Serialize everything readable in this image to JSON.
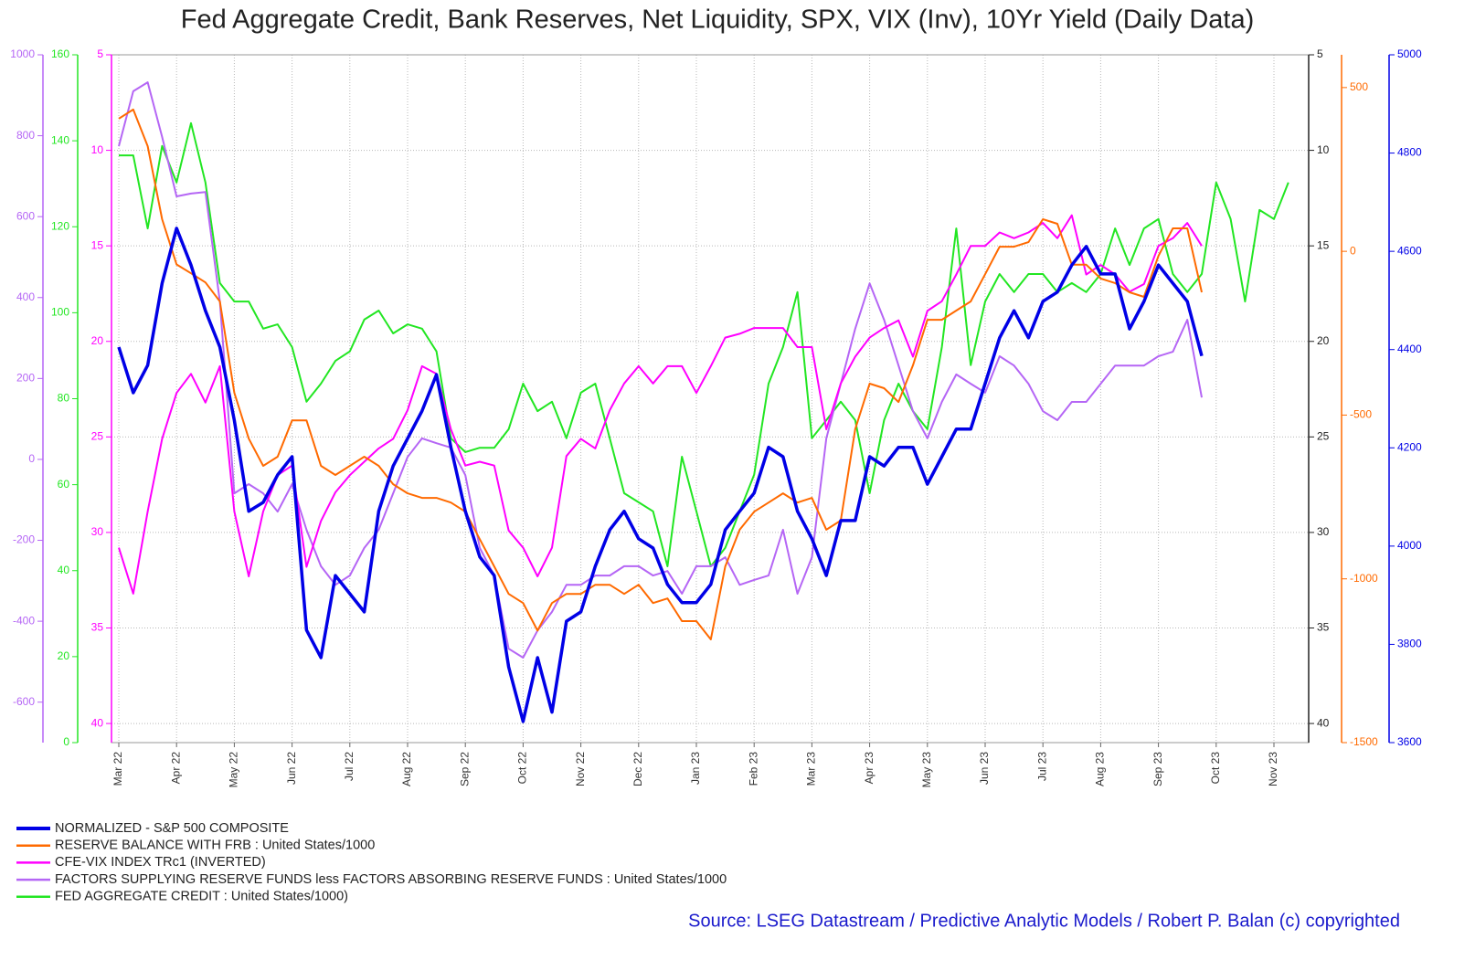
{
  "chart_data": {
    "type": "line",
    "title": "Fed Aggregate Credit, Bank Reserves, Net Liquidity, SPX, VIX (Inv), 10Yr Yield (Daily Data)",
    "source": "Source: LSEG Datastream / Predictive Analytic Models / Robert P. Balan (c) copyrighted",
    "categories": [
      "Mar 22",
      null,
      null,
      null,
      "Apr 22",
      null,
      null,
      null,
      "May 22",
      null,
      null,
      null,
      "Jun 22",
      null,
      null,
      null,
      "Jul 22",
      null,
      null,
      null,
      "Aug 22",
      null,
      null,
      null,
      "Sep 22",
      null,
      null,
      null,
      "Oct 22",
      null,
      null,
      null,
      "Nov 22",
      null,
      null,
      null,
      "Dec 22",
      null,
      null,
      null,
      "Jan 23",
      null,
      null,
      null,
      "Feb 23",
      null,
      null,
      null,
      "Mar 23",
      null,
      null,
      null,
      "Apr 23",
      null,
      null,
      null,
      "May 23",
      null,
      null,
      null,
      "Jun 23",
      null,
      null,
      null,
      "Jul 23",
      null,
      null,
      null,
      "Aug 23",
      null,
      null,
      null,
      "Sep 23",
      null,
      null,
      null,
      "Oct 23",
      null,
      null,
      null,
      "Nov 23",
      null
    ],
    "grid": true,
    "ylim": [
      0,
      160
    ],
    "yticks": [
      0,
      20,
      40,
      60,
      80,
      100,
      120,
      140,
      160
    ],
    "y2lim": [
      -700,
      1000
    ],
    "y2ticks": [
      -600,
      -400,
      -200,
      0,
      200,
      400,
      600,
      800,
      1000
    ],
    "y3lim": [
      41,
      5
    ],
    "y3ticks": [
      5,
      10,
      15,
      20,
      25,
      30,
      35,
      40
    ],
    "y4lim": [
      41,
      5
    ],
    "y4ticks": [
      5,
      10,
      15,
      20,
      25,
      30,
      35,
      40
    ],
    "y5lim": [
      -1500,
      600
    ],
    "y5ticks": [
      -1500,
      -1000,
      -500,
      0,
      500
    ],
    "y6lim": [
      3600,
      5000
    ],
    "y6ticks": [
      3600,
      3800,
      4000,
      4200,
      4400,
      4600,
      4800,
      5000
    ],
    "series": [
      {
        "name": "NORMALIZED - S&P 500 COMPOSITE",
        "color": "#0000e6",
        "axis": "y6",
        "values": [
          4405,
          4312,
          4368,
          4535,
          4647,
          4572,
          4479,
          4405,
          4256,
          4071,
          4089,
          4145,
          4182,
          3829,
          3773,
          3940,
          3903,
          3866,
          4071,
          4163,
          4219,
          4275,
          4349,
          4201,
          4071,
          3978,
          3940,
          3754,
          3643,
          3773,
          3662,
          3847,
          3866,
          3959,
          4033,
          4071,
          4015,
          3996,
          3922,
          3885,
          3885,
          3922,
          4033,
          4071,
          4108,
          4201,
          4182,
          4071,
          4015,
          3940,
          4052,
          4052,
          4182,
          4163,
          4201,
          4201,
          4126,
          4182,
          4238,
          4238,
          4331,
          4424,
          4479,
          4424,
          4498,
          4517,
          4572,
          4610,
          4554,
          4554,
          4442,
          4498,
          4572,
          4535,
          4498,
          4387,
          null,
          null,
          null,
          null,
          null,
          null
        ]
      },
      {
        "name": "RESERVE BALANCE WITH FRB : United States/1000",
        "color": "#ff6a00",
        "axis": "y5",
        "values": [
          405,
          433,
          321,
          98,
          -40,
          -67,
          -95,
          -153,
          -432,
          -572,
          -655,
          -627,
          -516,
          -516,
          -655,
          -683,
          -655,
          -627,
          -655,
          -711,
          -739,
          -753,
          -753,
          -767,
          -795,
          -879,
          -962,
          -1046,
          -1074,
          -1158,
          -1074,
          -1046,
          -1046,
          -1018,
          -1018,
          -1046,
          -1018,
          -1074,
          -1060,
          -1129,
          -1129,
          -1185,
          -962,
          -850,
          -795,
          -767,
          -739,
          -767,
          -753,
          -850,
          -822,
          -543,
          -404,
          -418,
          -460,
          -348,
          -209,
          -209,
          -181,
          -153,
          -70,
          14,
          14,
          28,
          98,
          84,
          -41,
          -41,
          -83,
          -97,
          -125,
          -139,
          -14,
          70,
          70,
          -125,
          null,
          null,
          null,
          null,
          null,
          null
        ]
      },
      {
        "name": "CFE-VIX INDEX TRc1 (INVERTED)",
        "color": "#ff00ff",
        "axis": "y3",
        "values": [
          30.8,
          33.2,
          28.9,
          25.1,
          22.7,
          21.7,
          23.2,
          21.3,
          28.9,
          32.3,
          28.9,
          27.0,
          26.5,
          31.8,
          29.4,
          27.9,
          27.0,
          26.3,
          25.6,
          25.1,
          23.6,
          21.3,
          21.7,
          24.6,
          26.5,
          26.3,
          26.5,
          29.9,
          30.8,
          32.3,
          30.8,
          26.0,
          25.1,
          25.6,
          23.6,
          22.2,
          21.3,
          22.2,
          21.3,
          21.3,
          22.7,
          21.3,
          19.8,
          19.6,
          19.3,
          19.3,
          19.3,
          20.3,
          20.3,
          24.6,
          22.2,
          20.8,
          19.8,
          19.3,
          18.9,
          20.8,
          18.4,
          17.9,
          16.5,
          15.0,
          15.0,
          14.3,
          14.6,
          14.3,
          13.8,
          14.6,
          13.4,
          16.5,
          16.0,
          16.5,
          17.4,
          17.0,
          15.0,
          14.6,
          13.8,
          15.0,
          null,
          null,
          null,
          null,
          null,
          null
        ]
      },
      {
        "name": "FACTORS SUPPLYING RESERVE FUNDS less FACTORS ABSORBING RESERVE FUNDS : United States/1000",
        "color": "#b566f5",
        "axis": "y2",
        "values": [
          774,
          910,
          932,
          797,
          650,
          657,
          661,
          390,
          -84,
          -61,
          -84,
          -129,
          -61,
          -174,
          -264,
          -310,
          -287,
          -219,
          -174,
          -84,
          6,
          52,
          40,
          29,
          -39,
          -219,
          -287,
          -468,
          -490,
          -423,
          -377,
          -310,
          -310,
          -287,
          -287,
          -264,
          -264,
          -287,
          -276,
          -332,
          -264,
          -264,
          -242,
          -310,
          -298,
          -287,
          -174,
          -332,
          -242,
          52,
          187,
          323,
          435,
          345,
          232,
          119,
          52,
          142,
          210,
          187,
          165,
          255,
          232,
          187,
          119,
          97,
          142,
          142,
          187,
          232,
          232,
          232,
          255,
          266,
          345,
          153,
          null,
          null,
          null,
          null,
          null,
          null
        ]
      },
      {
        "name": "FED AGGREGATE CREDIT : United States/1000)",
        "color": "#22e622",
        "axis": "y",
        "values": [
          136.6,
          136.6,
          119.6,
          138.8,
          130.3,
          144.1,
          130.3,
          106.9,
          102.6,
          102.6,
          96.3,
          97.3,
          92.0,
          79.3,
          83.5,
          88.8,
          91.0,
          98.4,
          100.5,
          95.2,
          97.3,
          96.3,
          91.0,
          70.8,
          67.6,
          68.6,
          68.6,
          72.9,
          83.5,
          77.1,
          79.3,
          70.8,
          81.4,
          83.5,
          70.8,
          58.0,
          55.9,
          53.8,
          41.0,
          66.5,
          53.8,
          41.0,
          45.3,
          53.8,
          62.3,
          83.5,
          92.0,
          104.8,
          70.8,
          75.0,
          79.3,
          75.0,
          58.0,
          75.0,
          83.5,
          77.1,
          72.9,
          92.0,
          119.6,
          87.8,
          102.6,
          109.0,
          104.8,
          109.0,
          109.0,
          104.8,
          106.9,
          104.8,
          109.0,
          119.6,
          111.1,
          119.6,
          121.8,
          109.0,
          104.8,
          109.0,
          130.3,
          121.8,
          102.6,
          123.9,
          121.8,
          130.3
        ]
      }
    ]
  }
}
